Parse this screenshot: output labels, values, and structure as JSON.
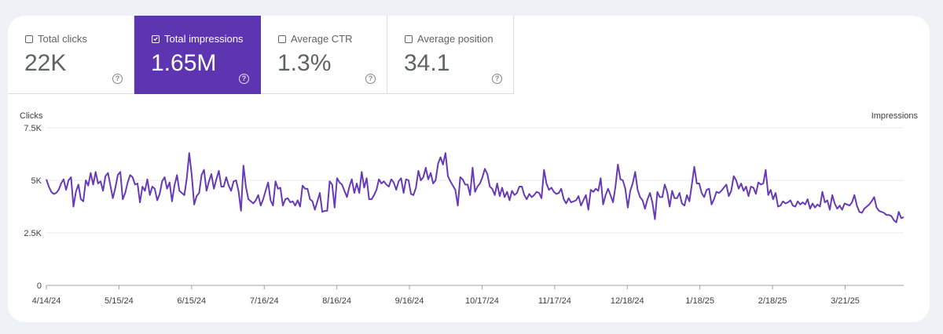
{
  "metrics": [
    {
      "label": "Total clicks",
      "value": "22K",
      "checked": false
    },
    {
      "label": "Total impressions",
      "value": "1.65M",
      "checked": true
    },
    {
      "label": "Average CTR",
      "value": "1.3%",
      "checked": false
    },
    {
      "label": "Average position",
      "value": "34.1",
      "checked": false
    }
  ],
  "help_icon": "?",
  "colors": {
    "accent": "#5e35b1",
    "line": "#673ab7",
    "grid": "#e8eaed"
  },
  "chart_data": {
    "type": "line",
    "ylabel_left": "Clicks",
    "ylabel_right": "Impressions",
    "ylim": [
      0,
      7500
    ],
    "yticks": [
      {
        "value": 7500,
        "label": "7.5K"
      },
      {
        "value": 5000,
        "label": "5K"
      },
      {
        "value": 2500,
        "label": "2.5K"
      },
      {
        "value": 0,
        "label": "0"
      }
    ],
    "xticks": [
      {
        "day": 0,
        "label": "4/14/24"
      },
      {
        "day": 31,
        "label": "5/15/24"
      },
      {
        "day": 62,
        "label": "6/15/24"
      },
      {
        "day": 93,
        "label": "7/16/24"
      },
      {
        "day": 124,
        "label": "8/16/24"
      },
      {
        "day": 155,
        "label": "9/16/24"
      },
      {
        "day": 186,
        "label": "10/17/24"
      },
      {
        "day": 217,
        "label": "11/17/24"
      },
      {
        "day": 248,
        "label": "12/18/24"
      },
      {
        "day": 279,
        "label": "1/18/25"
      },
      {
        "day": 310,
        "label": "2/18/25"
      },
      {
        "day": 341,
        "label": "3/21/25"
      }
    ],
    "x_domain": [
      0,
      366
    ],
    "grid": true,
    "series": [
      {
        "name": "Total impressions",
        "values": [
          5050,
          4700,
          4450,
          4350,
          4400,
          4550,
          4850,
          5050,
          4550,
          5000,
          5150,
          3750,
          4450,
          4800,
          4100,
          4000,
          5000,
          4750,
          5350,
          4800,
          5400,
          4850,
          4950,
          4500,
          5200,
          5350,
          4750,
          4150,
          4650,
          5250,
          5400,
          4100,
          4400,
          4900,
          5250,
          5150,
          4800,
          4850,
          3950,
          4700,
          4500,
          5050,
          4300,
          4700,
          4600,
          4050,
          4350,
          4950,
          5150,
          4600,
          4900,
          4000,
          4750,
          5250,
          4500,
          4400,
          4300,
          5100,
          6300,
          5250,
          3850,
          4250,
          4400,
          5250,
          5500,
          4500,
          4950,
          5300,
          4600,
          5050,
          5450,
          4700,
          4700,
          5150,
          4750,
          4500,
          4950,
          5000,
          4500,
          3550,
          5700,
          4700,
          4100,
          4000,
          3900,
          4050,
          4300,
          3800,
          4100,
          4500,
          4900,
          4050,
          3800,
          4950,
          4600,
          4650,
          3800,
          4100,
          4150,
          3950,
          4000,
          3800,
          4050,
          3750,
          4750,
          4600,
          4600,
          4100,
          4000,
          3600,
          4000,
          4400,
          3500,
          3550,
          3550,
          4950,
          4800,
          3700,
          5100,
          4900,
          4800,
          4500,
          4200,
          4700,
          5050,
          4400,
          4850,
          4400,
          5400,
          4650,
          5100,
          4100,
          4100,
          4300,
          4550,
          5050,
          4850,
          4950,
          4800,
          4700,
          5050,
          4900,
          4550,
          4950,
          5100,
          4400,
          5050,
          5000,
          4350,
          4300,
          4650,
          5450,
          5000,
          5150,
          5600,
          5050,
          5350,
          4850,
          5000,
          5800,
          6100,
          5750,
          6300,
          5200,
          4950,
          4750,
          4550,
          3800,
          5150,
          5050,
          4800,
          4800,
          4300,
          5600,
          4450,
          4700,
          4850,
          5150,
          5550,
          5300,
          4700,
          4600,
          4300,
          4850,
          4250,
          4650,
          4200,
          4450,
          4050,
          4500,
          4300,
          4400,
          4700,
          4700,
          4300,
          4100,
          4350,
          4200,
          4300,
          4450,
          4400,
          4150,
          5500,
          4850,
          4550,
          4650,
          4450,
          4350,
          4400,
          4600,
          4100,
          3900,
          4150,
          3950,
          4000,
          4050,
          4250,
          3800,
          4050,
          4300,
          3600,
          4550,
          4450,
          4600,
          4500,
          5100,
          3850,
          4300,
          4600,
          4300,
          3950,
          4700,
          5750,
          5050,
          5000,
          4600,
          3700,
          4500,
          4850,
          5400,
          4550,
          4200,
          4050,
          3650,
          4100,
          4400,
          3950,
          3150,
          4450,
          4200,
          4200,
          4800,
          4450,
          3750,
          4500,
          4150,
          4150,
          4400,
          3900,
          3800,
          4300,
          4000,
          4800,
          5650,
          4850,
          4850,
          4400,
          4200,
          4550,
          4600,
          3850,
          4100,
          4450,
          4400,
          4500,
          4650,
          4800,
          4250,
          4500,
          5200,
          5000,
          4600,
          4850,
          4500,
          4700,
          4250,
          4700,
          4650,
          4350,
          4900,
          4800,
          4850,
          5500,
          4300,
          4550,
          4100,
          4400,
          3750,
          3800,
          4000,
          3900,
          3950,
          4050,
          3800,
          3750,
          4000,
          3850,
          3950,
          3850,
          4100,
          3650,
          3900,
          3700,
          3850,
          3750,
          4450,
          3950,
          4050,
          3600,
          4300,
          3900,
          3650,
          3800,
          3600,
          3900,
          3850,
          3800,
          3950,
          4300,
          3800,
          3500,
          3450,
          3650,
          3750,
          3850,
          4000,
          4200,
          3700,
          3550,
          3500,
          3450,
          3350,
          3350,
          3300,
          3100,
          3000,
          3500,
          3200,
          3250
        ]
      }
    ]
  }
}
